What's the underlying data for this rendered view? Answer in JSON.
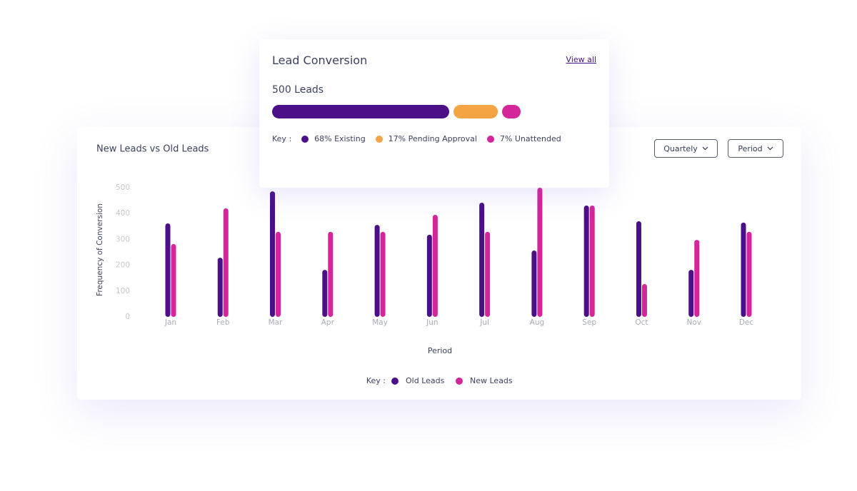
{
  "lead_card": {
    "title": "Lead Conversion",
    "link": "View all",
    "total": "500 Leads",
    "key_label": "Key :",
    "segments": [
      {
        "label": "68% Existing",
        "value": 68,
        "color": "#4b0f87"
      },
      {
        "label": "17% Pending Approval",
        "value": 17,
        "color": "#f5a443"
      },
      {
        "label": "7% Unattended",
        "value": 7,
        "color": "#d4259b"
      }
    ]
  },
  "controls": [
    "Quartely",
    "Period"
  ],
  "chart_data": {
    "type": "bar",
    "title": "New Leads vs Old Leads",
    "y_label": "Frequency of Conversion",
    "x_label": "Period",
    "legend_key": "Key :",
    "categories": [
      "Jan",
      "Feb",
      "Mar",
      "Apr",
      "May",
      "Jun",
      "Jul",
      "Aug",
      "Sep",
      "Oct",
      "Nov",
      "Dec"
    ],
    "series": [
      {
        "name": "Old Leads",
        "color": "#4b0f87",
        "values": [
          362,
          229,
          486,
          182,
          356,
          318,
          442,
          257,
          431,
          370,
          182,
          365
        ]
      },
      {
        "name": "New Leads",
        "color": "#d4259b",
        "values": [
          282,
          420,
          329,
          329,
          329,
          395,
          329,
          500,
          431,
          127,
          298,
          329
        ]
      }
    ],
    "ylim": [
      0,
      500
    ],
    "yticks": [
      0,
      100,
      200,
      300,
      400,
      500
    ]
  }
}
